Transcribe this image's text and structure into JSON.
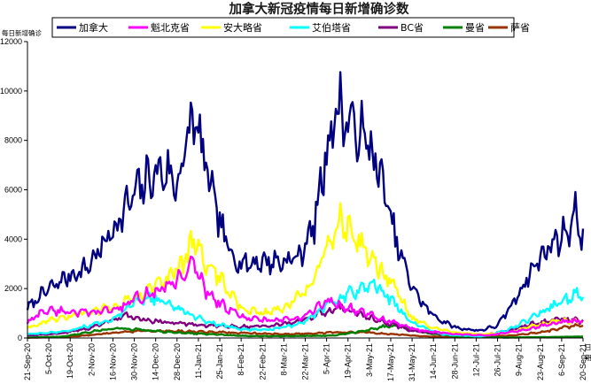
{
  "chart_data": {
    "type": "line",
    "title": "加拿大新冠疫情每日新增确诊数",
    "ylabel": "每日新增确诊",
    "xlabel_unit": "日期",
    "ylim": [
      0,
      12000
    ],
    "y_ticks": [
      0,
      2000,
      4000,
      6000,
      8000,
      10000,
      12000
    ],
    "grid": false,
    "legend_position": "top",
    "x_start": "2020-09-21",
    "x_end": "2021-09-20",
    "x_tick_labels": [
      "21-Sep-20",
      "5-Oct-20",
      "19-Oct-20",
      "2-Nov-20",
      "16-Nov-20",
      "30-Nov-20",
      "14-Dec-20",
      "28-Dec-20",
      "11-Jan-21",
      "25-Jan-21",
      "8-Feb-21",
      "22-Feb-21",
      "8-Mar-21",
      "22-Mar-21",
      "5-Apr-21",
      "19-Apr-21",
      "3-May-21",
      "17-May-21",
      "31-May-21",
      "14-Jun-21",
      "28-Jun-21",
      "12-Jul-21",
      "26-Jul-21",
      "9-Aug-21",
      "23-Aug-21",
      "6-Sep-21",
      "20-Sep-21"
    ],
    "series": [
      {
        "name": "加拿大",
        "color": "#000080",
        "x": [
          "2020-09-21",
          "2020-10-01",
          "2020-10-15",
          "2020-10-29",
          "2020-11-08",
          "2020-11-20",
          "2020-12-01",
          "2020-12-10",
          "2020-12-20",
          "2020-12-28",
          "2021-01-03",
          "2021-01-08",
          "2021-01-14",
          "2021-01-21",
          "2021-01-28",
          "2021-02-04",
          "2021-02-11",
          "2021-02-22",
          "2021-03-08",
          "2021-03-18",
          "2021-03-28",
          "2021-04-06",
          "2021-04-13",
          "2021-04-18",
          "2021-04-25",
          "2021-05-03",
          "2021-05-12",
          "2021-05-20",
          "2021-05-30",
          "2021-06-09",
          "2021-06-19",
          "2021-06-30",
          "2021-07-14",
          "2021-07-26",
          "2021-08-05",
          "2021-08-16",
          "2021-08-27",
          "2021-09-03",
          "2021-09-10",
          "2021-09-15",
          "2021-09-20"
        ],
        "values": [
          1200,
          1800,
          2400,
          2800,
          3600,
          4800,
          5900,
          6500,
          6800,
          6200,
          7800,
          9000,
          7400,
          5600,
          4000,
          3200,
          3000,
          3100,
          3100,
          3300,
          4600,
          8000,
          9400,
          8800,
          8400,
          7800,
          6200,
          4000,
          2200,
          1200,
          700,
          400,
          300,
          500,
          1400,
          2600,
          3600,
          4000,
          4400,
          5000,
          4100
        ]
      },
      {
        "name": "魁北克省",
        "color": "#ff00ff",
        "x": [
          "2020-09-21",
          "2020-10-01",
          "2020-10-15",
          "2020-11-01",
          "2020-11-20",
          "2020-12-05",
          "2020-12-20",
          "2021-01-01",
          "2021-01-08",
          "2021-01-15",
          "2021-01-25",
          "2021-02-10",
          "2021-03-01",
          "2021-03-20",
          "2021-04-05",
          "2021-04-20",
          "2021-05-05",
          "2021-05-20",
          "2021-06-05",
          "2021-06-30",
          "2021-07-20",
          "2021-08-10",
          "2021-08-25",
          "2021-09-10",
          "2021-09-20"
        ],
        "values": [
          600,
          1100,
          1100,
          1000,
          1200,
          1700,
          2000,
          2600,
          3000,
          2000,
          1400,
          800,
          700,
          800,
          1500,
          1200,
          900,
          600,
          300,
          150,
          100,
          300,
          500,
          700,
          650
        ]
      },
      {
        "name": "安大略省",
        "color": "#ffff00",
        "x": [
          "2020-09-21",
          "2020-10-05",
          "2020-10-20",
          "2020-11-05",
          "2020-11-20",
          "2020-12-05",
          "2020-12-20",
          "2021-01-01",
          "2021-01-08",
          "2021-01-15",
          "2021-01-25",
          "2021-02-08",
          "2021-02-22",
          "2021-03-10",
          "2021-03-25",
          "2021-04-05",
          "2021-04-14",
          "2021-04-20",
          "2021-04-30",
          "2021-05-10",
          "2021-05-20",
          "2021-05-31",
          "2021-06-14",
          "2021-06-30",
          "2021-07-15",
          "2021-08-01",
          "2021-08-20",
          "2021-09-05",
          "2021-09-20"
        ],
        "values": [
          400,
          700,
          900,
          1100,
          1400,
          1800,
          2300,
          3000,
          4000,
          3200,
          2400,
          1200,
          1000,
          1300,
          2000,
          3600,
          4600,
          4400,
          3600,
          2800,
          2000,
          800,
          400,
          200,
          150,
          200,
          500,
          700,
          650
        ]
      },
      {
        "name": "艾伯塔省",
        "color": "#00ffff",
        "x": [
          "2020-09-21",
          "2020-10-15",
          "2020-11-01",
          "2020-11-20",
          "2020-12-01",
          "2020-12-10",
          "2020-12-20",
          "2021-01-05",
          "2021-01-20",
          "2021-02-08",
          "2021-03-01",
          "2021-03-20",
          "2021-04-05",
          "2021-04-20",
          "2021-05-01",
          "2021-05-05",
          "2021-05-15",
          "2021-05-31",
          "2021-06-20",
          "2021-07-15",
          "2021-08-01",
          "2021-08-20",
          "2021-09-01",
          "2021-09-10",
          "2021-09-16",
          "2021-09-20"
        ],
        "values": [
          150,
          250,
          500,
          900,
          1500,
          1700,
          1400,
          1000,
          600,
          350,
          350,
          600,
          1300,
          1800,
          2100,
          2200,
          1700,
          600,
          150,
          60,
          300,
          900,
          1300,
          1600,
          1800,
          1500
        ]
      },
      {
        "name": "BC省",
        "color": "#800080",
        "x": [
          "2020-09-21",
          "2020-10-15",
          "2020-11-01",
          "2020-11-15",
          "2020-11-25",
          "2020-12-10",
          "2021-01-01",
          "2021-01-20",
          "2021-02-08",
          "2021-03-01",
          "2021-03-20",
          "2021-04-05",
          "2021-04-15",
          "2021-04-25",
          "2021-05-10",
          "2021-05-31",
          "2021-06-20",
          "2021-07-15",
          "2021-08-01",
          "2021-08-20",
          "2021-09-05",
          "2021-09-20"
        ],
        "values": [
          100,
          200,
          400,
          700,
          900,
          700,
          600,
          500,
          450,
          500,
          700,
          1100,
          1200,
          1000,
          700,
          300,
          150,
          80,
          300,
          600,
          800,
          700
        ]
      },
      {
        "name": "曼省",
        "color": "#008000",
        "x": [
          "2020-09-21",
          "2020-10-15",
          "2020-11-01",
          "2020-11-20",
          "2020-12-10",
          "2021-01-01",
          "2021-01-20",
          "2021-02-10",
          "2021-03-15",
          "2021-04-10",
          "2021-05-01",
          "2021-05-15",
          "2021-05-25",
          "2021-06-10",
          "2021-07-01",
          "2021-08-01",
          "2021-09-01",
          "2021-09-20"
        ],
        "values": [
          20,
          60,
          250,
          400,
          300,
          200,
          150,
          80,
          80,
          100,
          300,
          500,
          450,
          200,
          50,
          20,
          40,
          60
        ]
      },
      {
        "name": "萨省",
        "color": "#993300",
        "x": [
          "2020-09-21",
          "2020-10-15",
          "2020-11-01",
          "2020-11-20",
          "2020-12-10",
          "2021-01-01",
          "2021-01-20",
          "2021-02-10",
          "2021-03-10",
          "2021-04-05",
          "2021-05-01",
          "2021-05-20",
          "2021-06-10",
          "2021-07-10",
          "2021-08-05",
          "2021-08-25",
          "2021-09-10",
          "2021-09-20"
        ],
        "values": [
          10,
          40,
          120,
          230,
          300,
          270,
          250,
          200,
          150,
          220,
          230,
          150,
          60,
          30,
          100,
          250,
          450,
          550
        ]
      }
    ]
  }
}
